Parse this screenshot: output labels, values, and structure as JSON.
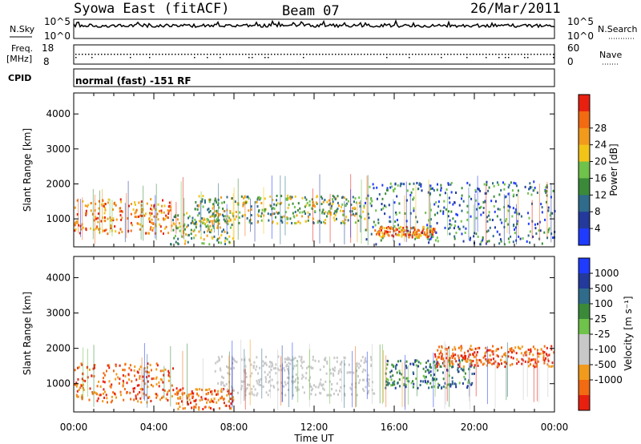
{
  "header": {
    "station": "Syowa East (fitACF)",
    "beam": "Beam 07",
    "date": "26/Mar/2011"
  },
  "strip_panels": {
    "nsky_label": "N.Sky",
    "nsky_ticks": [
      "10^5",
      "10^0"
    ],
    "nsearch_label": "N.Search",
    "nsearch_ticks": [
      "10^5",
      "10^0"
    ],
    "freq_label_1": "Freq.",
    "freq_label_2": "[MHz]",
    "freq_ticks": [
      "18",
      "8"
    ],
    "nave_label": "Nave",
    "nave_ticks": [
      "60",
      "0"
    ],
    "cpid_label": "CPID",
    "cpid_text": "normal (fast) -151 RF"
  },
  "colors": {
    "power": [
      "#1f3bff",
      "#233a9c",
      "#2f6b8a",
      "#3a8a3a",
      "#6fc24a",
      "#f2c417",
      "#f29a1c",
      "#f26a12",
      "#e82010"
    ],
    "velocity": [
      "#e82010",
      "#f26a12",
      "#f29a1c",
      "#c8c8c8",
      "#c8c8c8",
      "#6fc24a",
      "#3a8a3a",
      "#2f6b8a",
      "#233a9c",
      "#1f3bff"
    ]
  },
  "chart_data": [
    {
      "type": "heatmap",
      "ylabel": "Slant Range [km]",
      "xlabel": "Time UT",
      "x_ticks": [
        "00:00",
        "04:00",
        "08:00",
        "12:00",
        "16:00",
        "20:00",
        "00:00"
      ],
      "y_ticks": [
        "1000",
        "2000",
        "3000",
        "4000"
      ],
      "ylim": [
        200,
        4600
      ],
      "colorbar_label": "Power [dB]",
      "colorbar_ticks": [
        "4",
        "8",
        "12",
        "16",
        "20",
        "24",
        "28"
      ],
      "regions": [
        {
          "t0": 0.0,
          "t1": 4.8,
          "r0": 600,
          "r1": 1600,
          "level": "high"
        },
        {
          "t0": 4.8,
          "t1": 8.0,
          "r0": 300,
          "r1": 1200,
          "level": "mid"
        },
        {
          "t0": 6.0,
          "t1": 14.5,
          "r0": 900,
          "r1": 1700,
          "level": "mid"
        },
        {
          "t0": 14.5,
          "t1": 24.0,
          "r0": 300,
          "r1": 2100,
          "level": "low"
        },
        {
          "t0": 15.0,
          "t1": 18.0,
          "r0": 500,
          "r1": 800,
          "level": "high"
        }
      ]
    },
    {
      "type": "heatmap",
      "ylabel": "Slant Range [km]",
      "xlabel": "Time UT",
      "x_ticks": [
        "00:00",
        "04:00",
        "08:00",
        "12:00",
        "16:00",
        "20:00",
        "00:00"
      ],
      "y_ticks": [
        "1000",
        "2000",
        "3000",
        "4000"
      ],
      "ylim": [
        200,
        4600
      ],
      "colorbar_label": "Velocity [m s⁻¹]",
      "colorbar_ticks": [
        "1000",
        "500",
        "100",
        "25",
        "-25",
        "-100",
        "-500",
        "-1000"
      ],
      "regions": [
        {
          "t0": 0.0,
          "t1": 5.0,
          "r0": 500,
          "r1": 1600,
          "level": "negative"
        },
        {
          "t0": 5.0,
          "t1": 8.0,
          "r0": 300,
          "r1": 900,
          "level": "negative"
        },
        {
          "t0": 7.0,
          "t1": 15.0,
          "r0": 700,
          "r1": 1800,
          "level": "ground"
        },
        {
          "t0": 15.5,
          "t1": 20.0,
          "r0": 900,
          "r1": 1700,
          "level": "positive"
        },
        {
          "t0": 18.0,
          "t1": 24.0,
          "r0": 1500,
          "r1": 2100,
          "level": "negative"
        }
      ]
    }
  ]
}
